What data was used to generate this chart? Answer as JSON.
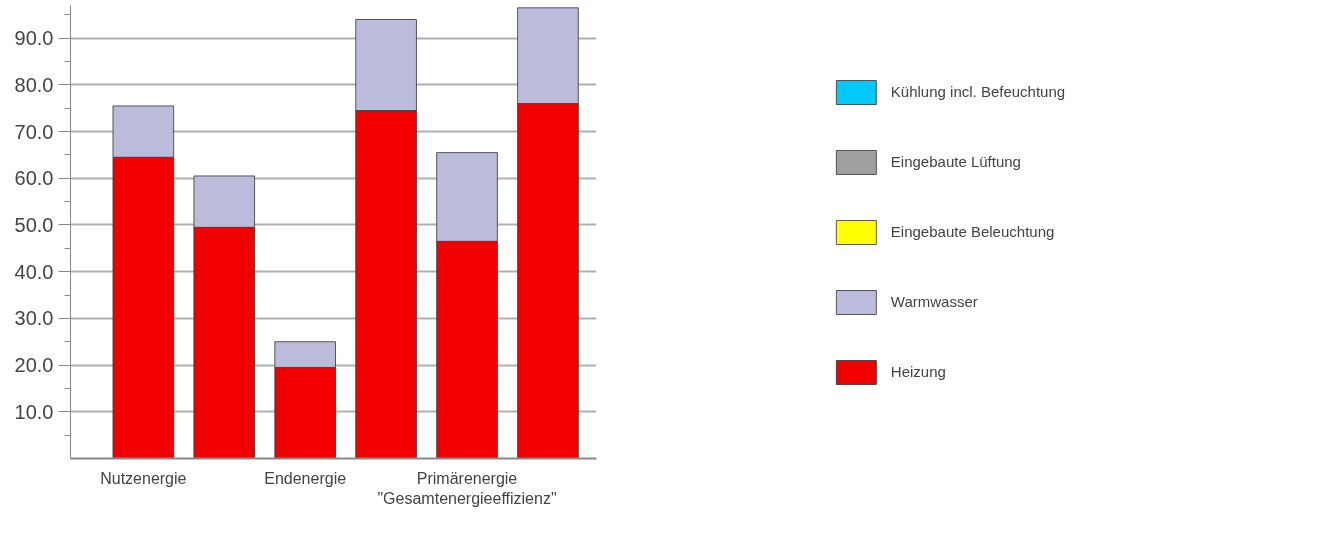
{
  "chart_data": {
    "type": "bar",
    "stacked": true,
    "categories": [
      "Nutzenergie",
      null,
      "Endenergie",
      null,
      "Primärenergie\n\"Gesamtenergieeffizienz\"",
      null
    ],
    "series": [
      {
        "name": "Heizung",
        "color": "#f20000",
        "values": [
          64.5,
          49.5,
          19.5,
          74.5,
          46.5,
          76
        ]
      },
      {
        "name": "Warmwasser",
        "color": "#bbbcdc",
        "values": [
          11,
          11,
          5.5,
          19.5,
          19,
          20.5
        ]
      },
      {
        "name": "Eingebaute Beleuchtung",
        "color": "#ffff00",
        "values": [
          null,
          null,
          null,
          null,
          null,
          null
        ]
      },
      {
        "name": "Eingebaute Lüftung",
        "color": "#a0a0a0",
        "values": [
          null,
          null,
          null,
          null,
          null,
          null
        ]
      },
      {
        "name": "Kühlung incl. Befeuchtung",
        "color": "#00c8f8",
        "values": [
          null,
          null,
          null,
          null,
          null,
          null
        ]
      }
    ],
    "ylim": [
      0,
      97
    ],
    "yticks": [
      {
        "value": 10,
        "label": "10.0"
      },
      {
        "value": 20,
        "label": "20.0"
      },
      {
        "value": 30,
        "label": "30.0"
      },
      {
        "value": 40,
        "label": "40.0"
      },
      {
        "value": 50,
        "label": "50.0"
      },
      {
        "value": 60,
        "label": "60.0"
      },
      {
        "value": 70,
        "label": "70.0"
      },
      {
        "value": 80,
        "label": "80.0"
      },
      {
        "value": 90,
        "label": "90.0"
      }
    ],
    "grid": "y",
    "legend": "right"
  }
}
